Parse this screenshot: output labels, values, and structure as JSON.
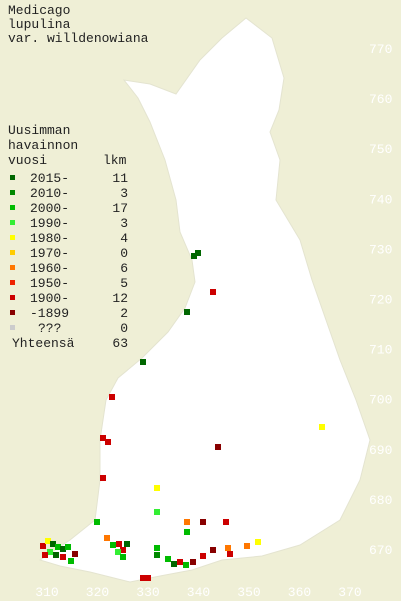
{
  "title": [
    "Medicago",
    "lupulina",
    "var. willdenowiana"
  ],
  "legend": {
    "header": [
      "Uusimman",
      "havainnon",
      "vuosi"
    ],
    "count_header": "lkm",
    "items": [
      {
        "label": "2015-",
        "count": "11",
        "color": "#006600"
      },
      {
        "label": "2010-",
        "count": "3",
        "color": "#008800"
      },
      {
        "label": "2000-",
        "count": "17",
        "color": "#00bb00"
      },
      {
        "label": "1990-",
        "count": "3",
        "color": "#33ee33"
      },
      {
        "label": "1980-",
        "count": "4",
        "color": "#ffff00"
      },
      {
        "label": "1970-",
        "count": "0",
        "color": "#ffcc00"
      },
      {
        "label": "1960-",
        "count": "6",
        "color": "#ff7700"
      },
      {
        "label": "1950-",
        "count": "5",
        "color": "#ee2200"
      },
      {
        "label": "1900-",
        "count": "12",
        "color": "#cc0000"
      },
      {
        "label": "-1899",
        "count": "2",
        "color": "#880000"
      },
      {
        "label": "???",
        "count": "0",
        "color": "#cccccc"
      }
    ],
    "total_label": "Yhteensä",
    "total": "63"
  },
  "y_labels": [
    "770",
    "760",
    "750",
    "740",
    "730",
    "720",
    "710",
    "700",
    "690",
    "680",
    "670"
  ],
  "x_labels": [
    "310",
    "320",
    "330",
    "340",
    "350",
    "360",
    "370"
  ]
}
